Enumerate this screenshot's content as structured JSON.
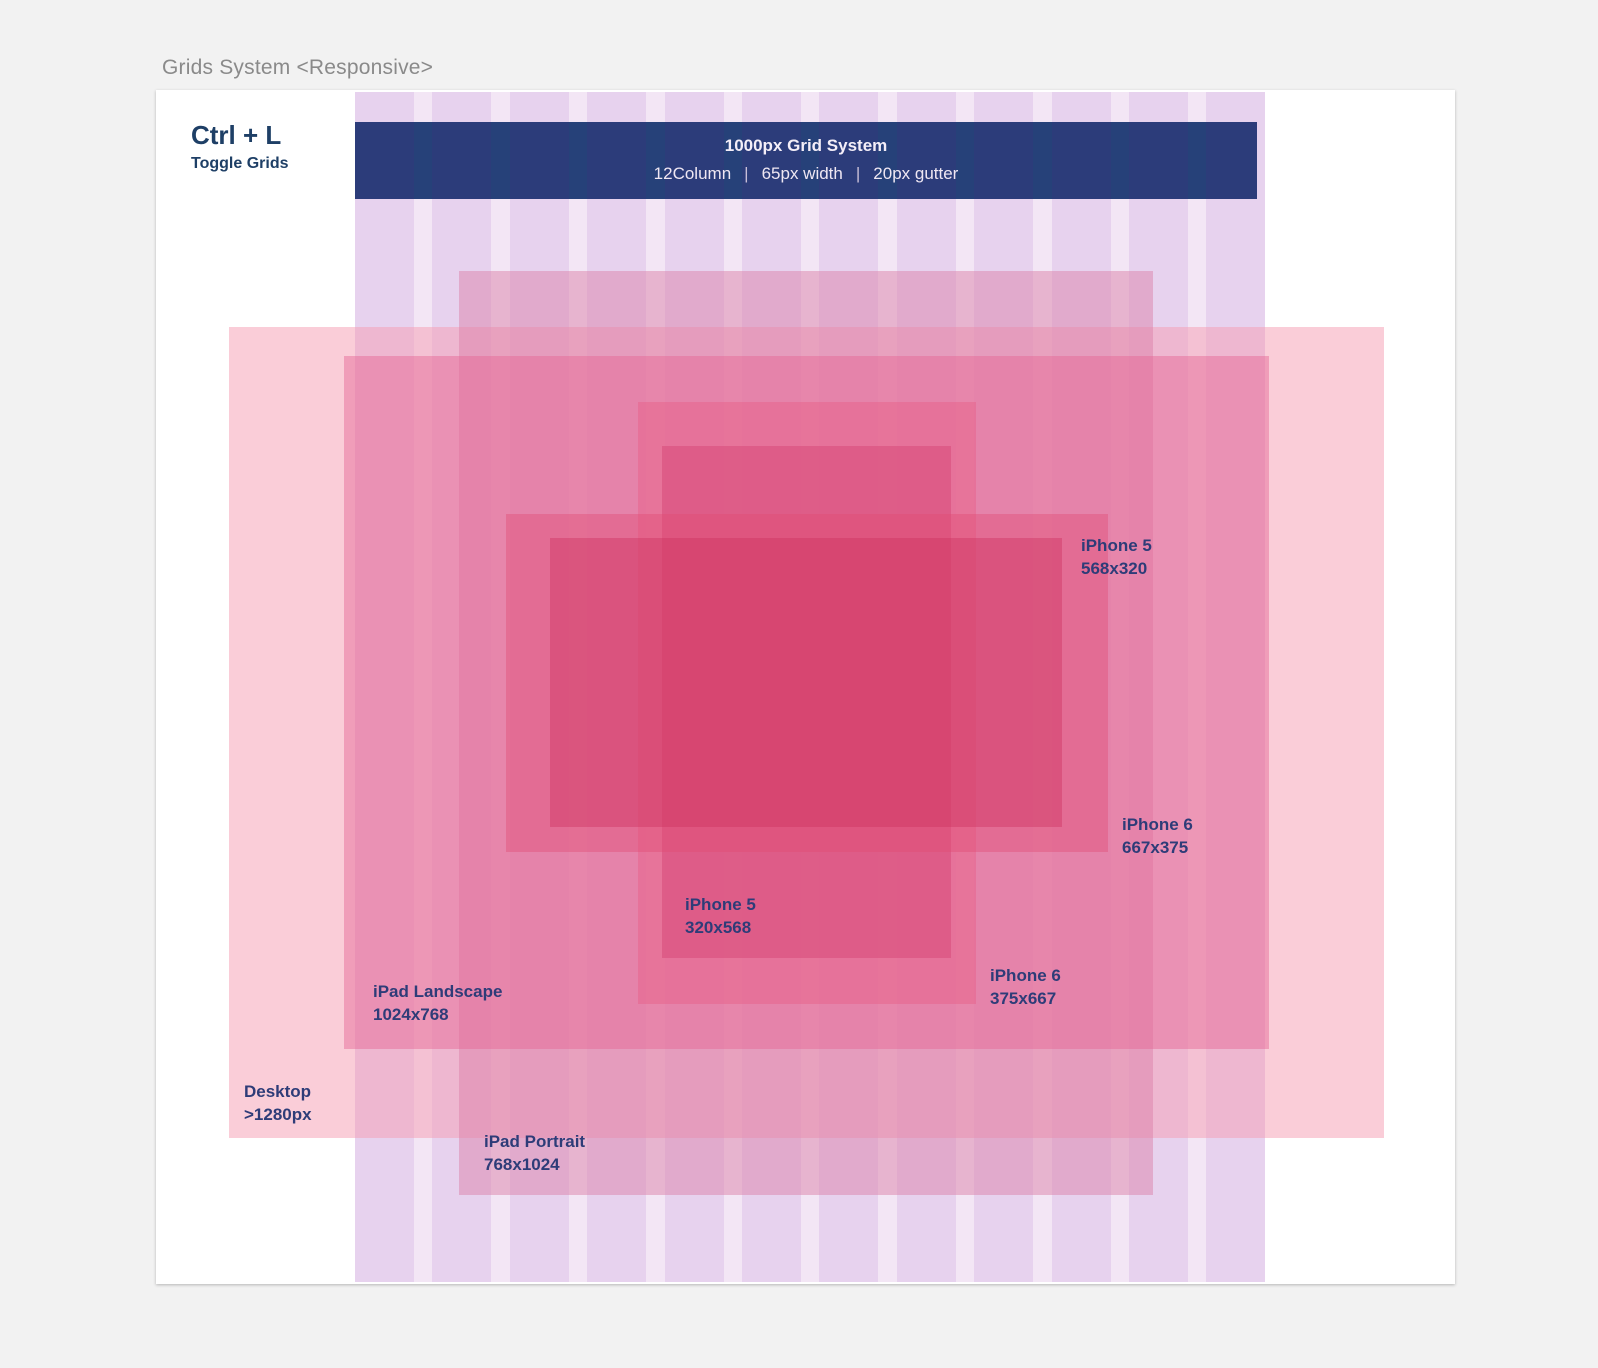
{
  "artboard": {
    "title": "Grids System <Responsive>"
  },
  "shortcut": {
    "key": "Ctrl + L",
    "action": "Toggle Grids"
  },
  "banner": {
    "title": "1000px Grid System",
    "columns": "12Column",
    "width": "65px width",
    "gutter": "20px gutter",
    "separator": "|"
  },
  "grid": {
    "columns": 12
  },
  "colors": {
    "banner": "#2c3c7a",
    "grid_column": "#e7d2ee",
    "grid_gutter": "#f3e6f5",
    "label_text": "#2e3c78"
  },
  "devices": {
    "desktop": {
      "name": "Desktop",
      "size": ">1280px"
    },
    "ipad_portrait": {
      "name": "iPad Portrait",
      "size": "768x1024"
    },
    "ipad_landscape": {
      "name": "iPad Landscape",
      "size": "1024x768"
    },
    "iphone6_portrait": {
      "name": "iPhone 6",
      "size": "375x667"
    },
    "iphone5_portrait": {
      "name": "iPhone 5",
      "size": "320x568"
    },
    "iphone6_landscape": {
      "name": "iPhone 6",
      "size": "667x375"
    },
    "iphone5_landscape": {
      "name": "iPhone 5",
      "size": "568x320"
    }
  }
}
